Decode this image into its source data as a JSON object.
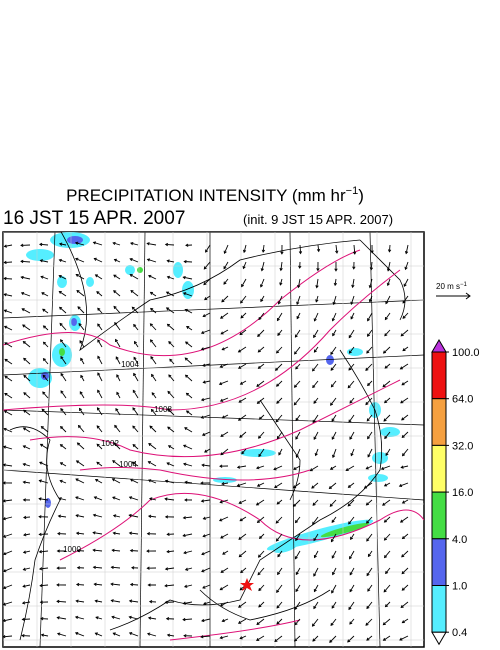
{
  "header": {
    "title": "PRECIPITATION INTENSITY (mm hr",
    "title_exponent": "−1",
    "title_end": ")",
    "valid_time": "16 JST 15 APR. 2007",
    "init_time": "(init. 9 JST 15 APR. 2007)"
  },
  "wind_scale": {
    "label": "20 m s",
    "exponent": "−1"
  },
  "isobar_labels": [
    "1004",
    "1008",
    "1002",
    "1004",
    "1000"
  ],
  "colorbar": {
    "ticks": [
      {
        "value": 100,
        "label": "100.0"
      },
      {
        "value": 64,
        "label": "64.0"
      },
      {
        "value": 32,
        "label": "32.0"
      },
      {
        "value": 16,
        "label": "16.0"
      },
      {
        "value": 4,
        "label": "4.0"
      },
      {
        "value": 1,
        "label": "1.0"
      },
      0.4
    ],
    "colors": [
      "#bb33dd",
      "#ee1111",
      "#f5a040",
      "#ffff66",
      "#44dd44",
      "#5566ee",
      "#55eeff",
      "#ffffff"
    ]
  }
}
